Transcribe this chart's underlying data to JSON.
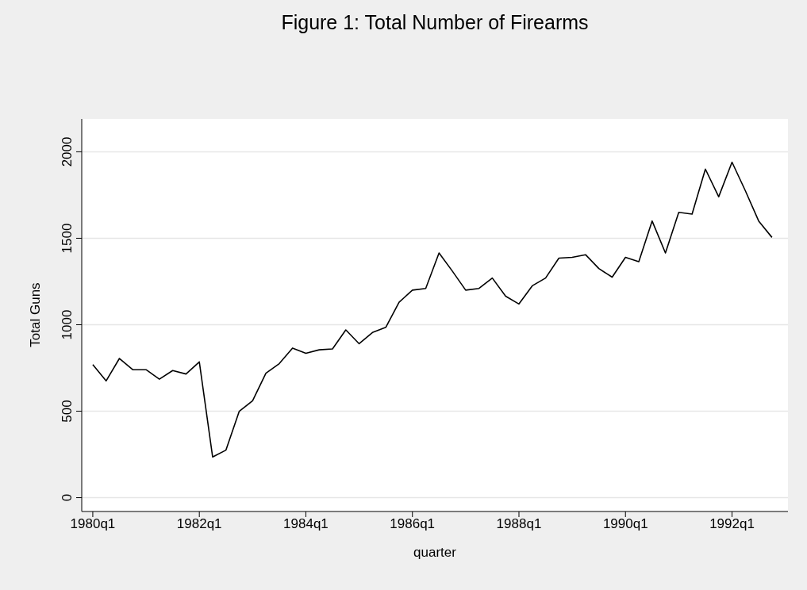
{
  "chart_data": {
    "type": "line",
    "title": "Figure 1: Total Number of Firearms",
    "xlabel": "quarter",
    "ylabel": "Total Guns",
    "categories": [
      "1980q1",
      null,
      null,
      null,
      null,
      null,
      null,
      null,
      "1982q1",
      null,
      null,
      null,
      null,
      null,
      null,
      null,
      "1984q1",
      null,
      null,
      null,
      null,
      null,
      null,
      null,
      "1986q1",
      null,
      null,
      null,
      null,
      null,
      null,
      null,
      "1988q1",
      null,
      null,
      null,
      null,
      null,
      null,
      null,
      "1990q1",
      null,
      null,
      null,
      null,
      null,
      null,
      null,
      "1992q1",
      null,
      null,
      null
    ],
    "series": [
      {
        "color": "#000000",
        "values": [
          770,
          675,
          805,
          740,
          740,
          685,
          735,
          715,
          785,
          235,
          275,
          500,
          560,
          720,
          775,
          865,
          835,
          855,
          860,
          970,
          890,
          955,
          985,
          1130,
          1200,
          1210,
          1415,
          1310,
          1200,
          1210,
          1270,
          1165,
          1120,
          1225,
          1270,
          1385,
          1390,
          1405,
          1325,
          1275,
          1390,
          1365,
          1600,
          1415,
          1650,
          1640,
          1900,
          1740,
          1940,
          1775,
          1600,
          1505
        ]
      }
    ],
    "ylim": [
      -80,
      2190
    ],
    "yticks": [
      0,
      500,
      1000,
      1500,
      2000
    ],
    "grid": "y",
    "legend": false,
    "marker": "none",
    "line_style": "solid"
  }
}
